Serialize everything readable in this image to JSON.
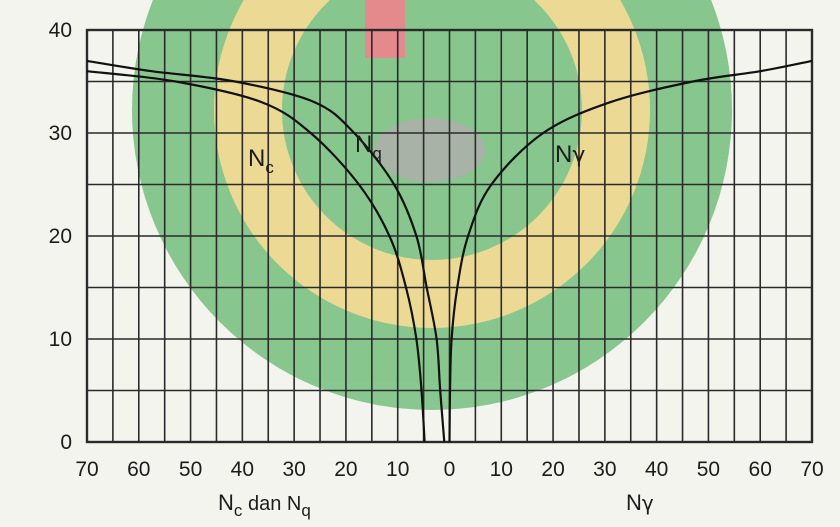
{
  "chart_data": {
    "type": "line",
    "x_axis": {
      "ticks": [
        "70",
        "60",
        "50",
        "40",
        "30",
        "20",
        "10",
        "0",
        "10",
        "20",
        "30",
        "40",
        "50",
        "60",
        "70"
      ],
      "left_title": {
        "main": "N",
        "sub_c": "c",
        "mid": " dan N",
        "sub_q": "q"
      },
      "right_title": {
        "main": "N",
        "greek": "γ"
      }
    },
    "y_axis": {
      "range": [
        0,
        40
      ],
      "major_ticks": [
        "0",
        "10",
        "20",
        "30",
        "40"
      ]
    },
    "grid": true,
    "series": [
      {
        "name": "Nc",
        "label_main": "N",
        "label_sub": "c",
        "side": "left",
        "points": [
          [
            4.8,
            0
          ],
          [
            5.4,
            5
          ],
          [
            6.4,
            10
          ],
          [
            8.4,
            15
          ],
          [
            11.6,
            20
          ],
          [
            17.5,
            25
          ],
          [
            26.8,
            30
          ],
          [
            36.3,
            33
          ],
          [
            52.9,
            35
          ],
          [
            70,
            36
          ]
        ]
      },
      {
        "name": "Nq",
        "label_main": "N",
        "label_sub": "q",
        "side": "left",
        "points": [
          [
            1.0,
            0
          ],
          [
            1.8,
            5
          ],
          [
            2.5,
            10
          ],
          [
            4.4,
            15
          ],
          [
            6.4,
            20
          ],
          [
            10.7,
            25
          ],
          [
            18.4,
            30
          ],
          [
            26.1,
            33
          ],
          [
            41.4,
            35
          ],
          [
            57.5,
            36
          ],
          [
            70,
            37
          ]
        ]
      },
      {
        "name": "Nγ",
        "label_main": "N",
        "label_greek": "γ",
        "side": "right",
        "points": [
          [
            0,
            0
          ],
          [
            0.1,
            5
          ],
          [
            0.4,
            10
          ],
          [
            1.5,
            15
          ],
          [
            3.6,
            20
          ],
          [
            8.1,
            25
          ],
          [
            18.1,
            30
          ],
          [
            31.1,
            33
          ],
          [
            47.0,
            35
          ],
          [
            60.0,
            36
          ],
          [
            70,
            37
          ]
        ]
      }
    ],
    "colors": {
      "background": "#f4f4ef",
      "grid": "#2a2a2a",
      "curves": "#111111",
      "watermark_green": "#2fa33f",
      "watermark_yellow": "#e7c64a",
      "watermark_red": "#d7333c"
    }
  }
}
